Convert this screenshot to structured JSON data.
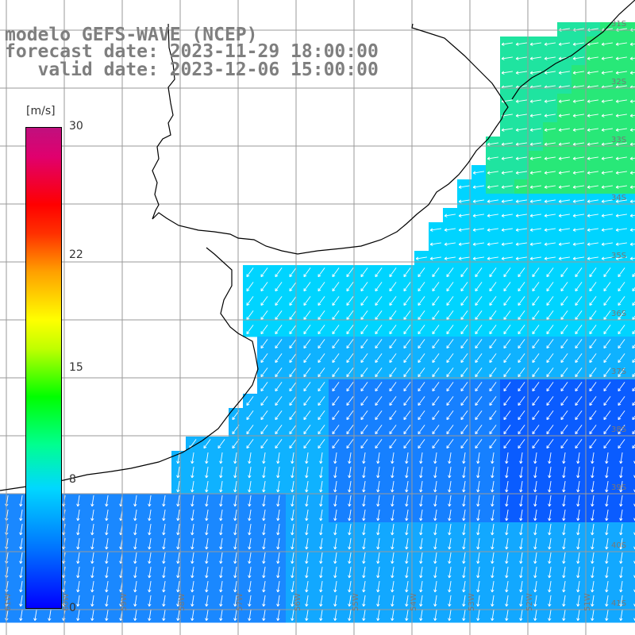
{
  "header": {
    "model_line": "modelo GEFS-WAVE (NCEP)",
    "forecast_line": "forecast date: 2023-11-29 18:00:00",
    "valid_line": "   valid date: 2023-12-06 15:00:00"
  },
  "colorbar": {
    "unit": "[m/s]",
    "min": 0,
    "max": 30,
    "ticks": [
      {
        "value": 30,
        "label": "30"
      },
      {
        "value": 22,
        "label": "22"
      },
      {
        "value": 15,
        "label": "15"
      },
      {
        "value": 8,
        "label": "8"
      },
      {
        "value": 0,
        "label": "0"
      }
    ]
  },
  "map": {
    "lat_labels": [
      "31S",
      "32S",
      "33S",
      "34S",
      "35S",
      "36S",
      "37S",
      "38S",
      "39S",
      "40S",
      "41S"
    ],
    "lon_labels": [
      "61W",
      "60W",
      "59W",
      "58W",
      "57W",
      "56W",
      "55W",
      "54W",
      "53W",
      "52W",
      "51W"
    ],
    "colors": {
      "ocean_low": "#1a66ff",
      "ocean_mid": "#00c8ff",
      "ocean_high": "#30e070",
      "land": "#ffffff",
      "grid": "#9a9a9a",
      "coast": "#000000",
      "arrow": "#ffffff"
    }
  }
}
